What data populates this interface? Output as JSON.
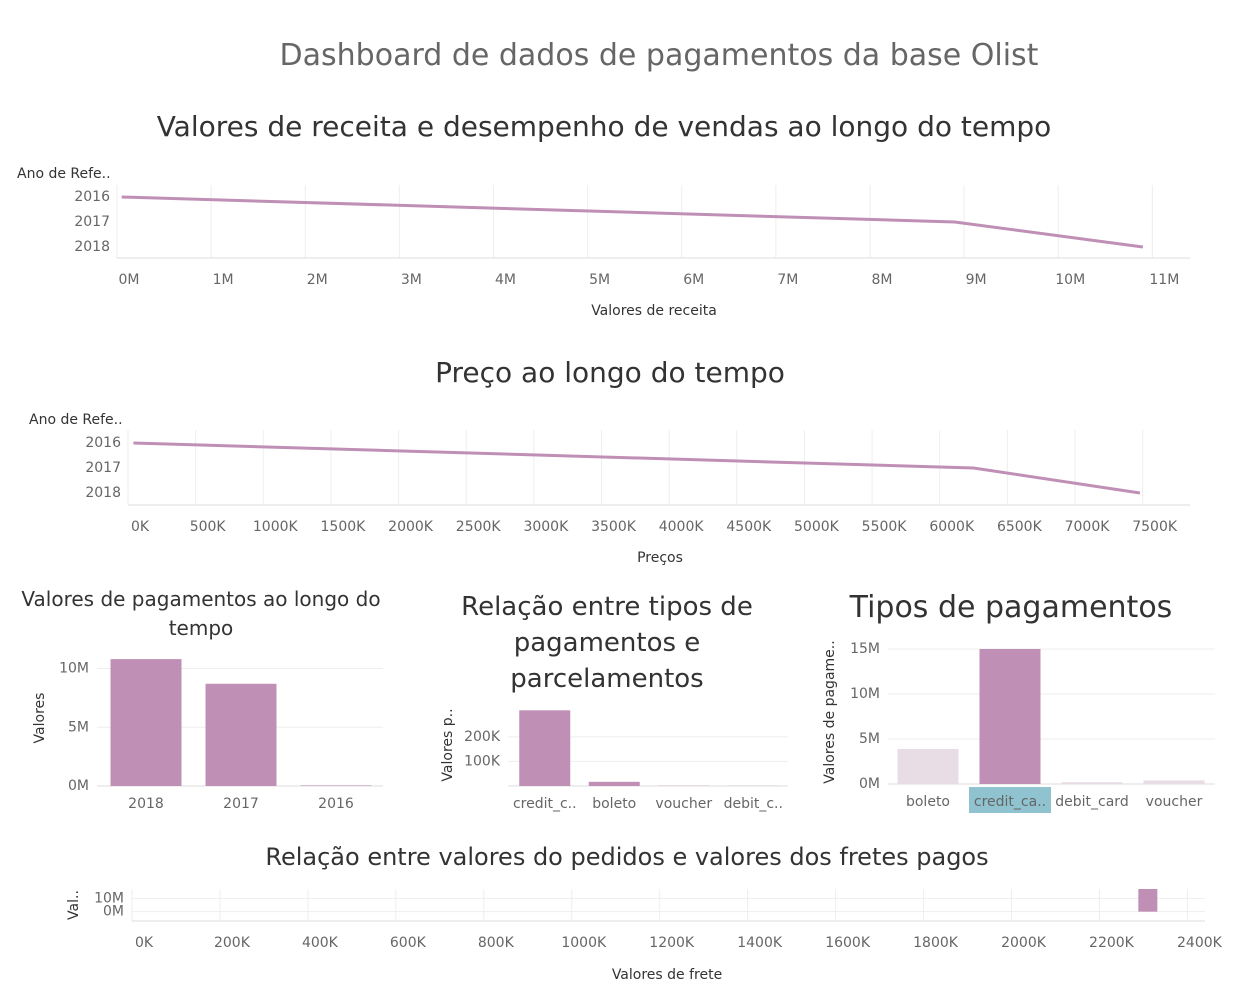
{
  "title": "Dashboard de dados de pagamentos da base Olist",
  "chart_data": [
    {
      "type": "line",
      "title": "Valores de receita e desempenho de vendas ao longo do tempo",
      "y_label": "Ano de Refe..",
      "x_label": "Valores de receita",
      "categories": [
        "2016",
        "2017",
        "2018"
      ],
      "values": [
        50000,
        8900000,
        10900000
      ],
      "color": "#c08fb5",
      "xlim": [
        0,
        11400000
      ],
      "xticks": [
        {
          "value": 0,
          "label": "0M"
        },
        {
          "value": 1000000,
          "label": "1M"
        },
        {
          "value": 2000000,
          "label": "2M"
        },
        {
          "value": 3000000,
          "label": "3M"
        },
        {
          "value": 4000000,
          "label": "4M"
        },
        {
          "value": 5000000,
          "label": "5M"
        },
        {
          "value": 6000000,
          "label": "6M"
        },
        {
          "value": 7000000,
          "label": "7M"
        },
        {
          "value": 8000000,
          "label": "8M"
        },
        {
          "value": 9000000,
          "label": "9M"
        },
        {
          "value": 10000000,
          "label": "10M"
        },
        {
          "value": 11000000,
          "label": "11M"
        }
      ],
      "grid": true
    },
    {
      "type": "line",
      "title": "Preço ao longo do tempo",
      "y_label": "Ano de Refe..",
      "x_label": "Preços",
      "categories": [
        "2016",
        "2017",
        "2018"
      ],
      "values": [
        40000,
        6250000,
        7480000
      ],
      "color": "#c08fb5",
      "xlim": [
        0,
        7850000
      ],
      "xticks": [
        {
          "value": 0,
          "label": "0K"
        },
        {
          "value": 500000,
          "label": "500K"
        },
        {
          "value": 1000000,
          "label": "1000K"
        },
        {
          "value": 1500000,
          "label": "1500K"
        },
        {
          "value": 2000000,
          "label": "2000K"
        },
        {
          "value": 2500000,
          "label": "2500K"
        },
        {
          "value": 3000000,
          "label": "3000K"
        },
        {
          "value": 3500000,
          "label": "3500K"
        },
        {
          "value": 4000000,
          "label": "4000K"
        },
        {
          "value": 4500000,
          "label": "4500K"
        },
        {
          "value": 5000000,
          "label": "5000K"
        },
        {
          "value": 5500000,
          "label": "5500K"
        },
        {
          "value": 6000000,
          "label": "6000K"
        },
        {
          "value": 6500000,
          "label": "6500K"
        },
        {
          "value": 7000000,
          "label": "7000K"
        },
        {
          "value": 7500000,
          "label": "7500K"
        }
      ],
      "grid": true
    },
    {
      "type": "bar",
      "title": "Valores de pagamentos ao longo do tempo",
      "y_label": "Valores",
      "categories": [
        "2018",
        "2017",
        "2016"
      ],
      "values": [
        10800000,
        8700000,
        50000
      ],
      "color": "#c08fb5",
      "ylim": [
        0,
        12000000
      ],
      "yticks": [
        {
          "value": 0,
          "label": "0M"
        },
        {
          "value": 5000000,
          "label": "5M"
        },
        {
          "value": 10000000,
          "label": "10M"
        }
      ],
      "grid": true
    },
    {
      "type": "bar",
      "title": "Relação entre tipos de pagamentos e parcelamentos",
      "y_label": "Valores p..",
      "categories": [
        "credit_c..",
        "boleto",
        "voucher",
        "debit_c.."
      ],
      "values": [
        308000,
        17000,
        1000,
        500
      ],
      "color": "#c08fb5",
      "ylim": [
        0,
        350000
      ],
      "yticks": [
        {
          "value": 100000,
          "label": "100K"
        },
        {
          "value": 200000,
          "label": "200K"
        }
      ],
      "grid": true
    },
    {
      "type": "bar",
      "title": "Tipos de pagamentos",
      "y_label": "Valores de pagame..",
      "categories": [
        "boleto",
        "credit_ca..",
        "debit_card",
        "voucher"
      ],
      "values": [
        3900000,
        15000000,
        200000,
        400000
      ],
      "colors": [
        "#e8dde5",
        "#c08fb5",
        "#e8dde5",
        "#e8dde5"
      ],
      "highlighted": [
        false,
        true,
        false,
        false
      ],
      "highlight_color": "#8fc3cf",
      "ylim": [
        0,
        16000000
      ],
      "yticks": [
        {
          "value": 0,
          "label": "0M"
        },
        {
          "value": 5000000,
          "label": "5M"
        },
        {
          "value": 10000000,
          "label": "10M"
        },
        {
          "value": 15000000,
          "label": "15M"
        }
      ],
      "grid": true
    },
    {
      "type": "bar",
      "title": "Relação entre valores do pedidos e valores dos fretes pagos",
      "y_label": "Val..",
      "x_label": "Valores de frete",
      "x": [
        2310000
      ],
      "values": [
        17000000
      ],
      "color": "#c08fb5",
      "xlim": [
        0,
        2440000
      ],
      "ylim": [
        -7000000,
        17000000
      ],
      "xticks": [
        {
          "value": 0,
          "label": "0K"
        },
        {
          "value": 200000,
          "label": "200K"
        },
        {
          "value": 400000,
          "label": "400K"
        },
        {
          "value": 600000,
          "label": "600K"
        },
        {
          "value": 800000,
          "label": "800K"
        },
        {
          "value": 1000000,
          "label": "1000K"
        },
        {
          "value": 1200000,
          "label": "1200K"
        },
        {
          "value": 1400000,
          "label": "1400K"
        },
        {
          "value": 1600000,
          "label": "1600K"
        },
        {
          "value": 1800000,
          "label": "1800K"
        },
        {
          "value": 2000000,
          "label": "2000K"
        },
        {
          "value": 2200000,
          "label": "2200K"
        },
        {
          "value": 2400000,
          "label": "2400K"
        }
      ],
      "yticks": [
        {
          "value": 0,
          "label": "0M"
        },
        {
          "value": 10000000,
          "label": "10M"
        }
      ],
      "grid": true
    }
  ]
}
